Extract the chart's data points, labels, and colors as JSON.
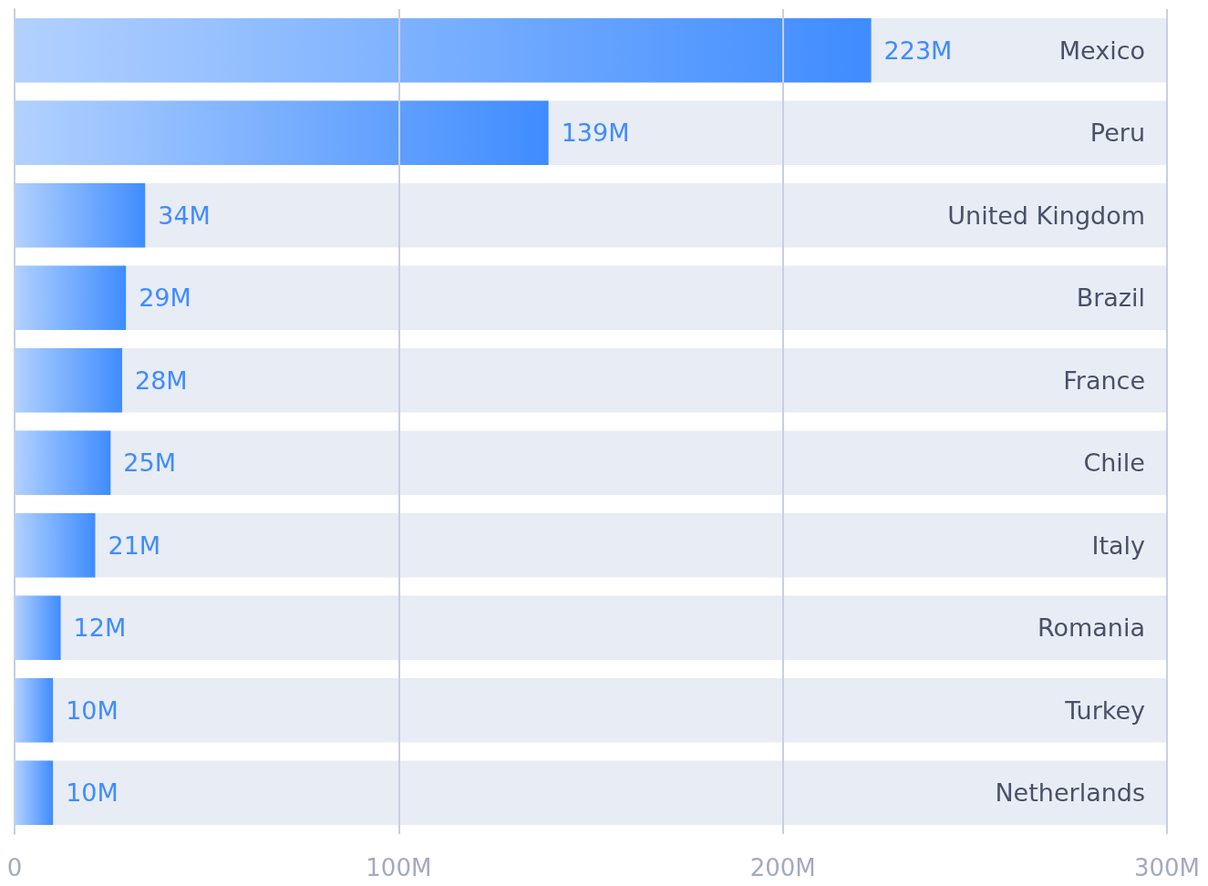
{
  "chart_data": {
    "type": "bar",
    "orientation": "horizontal",
    "categories": [
      "Mexico",
      "Peru",
      "United Kingdom",
      "Brazil",
      "France",
      "Chile",
      "Italy",
      "Romania",
      "Turkey",
      "Netherlands"
    ],
    "values": [
      223,
      139,
      34,
      29,
      28,
      25,
      21,
      12,
      10,
      10
    ],
    "value_labels": [
      "223M",
      "139M",
      "34M",
      "29M",
      "28M",
      "25M",
      "21M",
      "12M",
      "10M",
      "10M"
    ],
    "color": "#3f8cff",
    "xlim": [
      0,
      300
    ],
    "xticks": [
      0,
      {
        "value": 100,
        "label": "100M"
      },
      {
        "value": 200,
        "label": "200M"
      },
      {
        "value": 300,
        "label": "300M"
      }
    ],
    "grid": "x"
  }
}
